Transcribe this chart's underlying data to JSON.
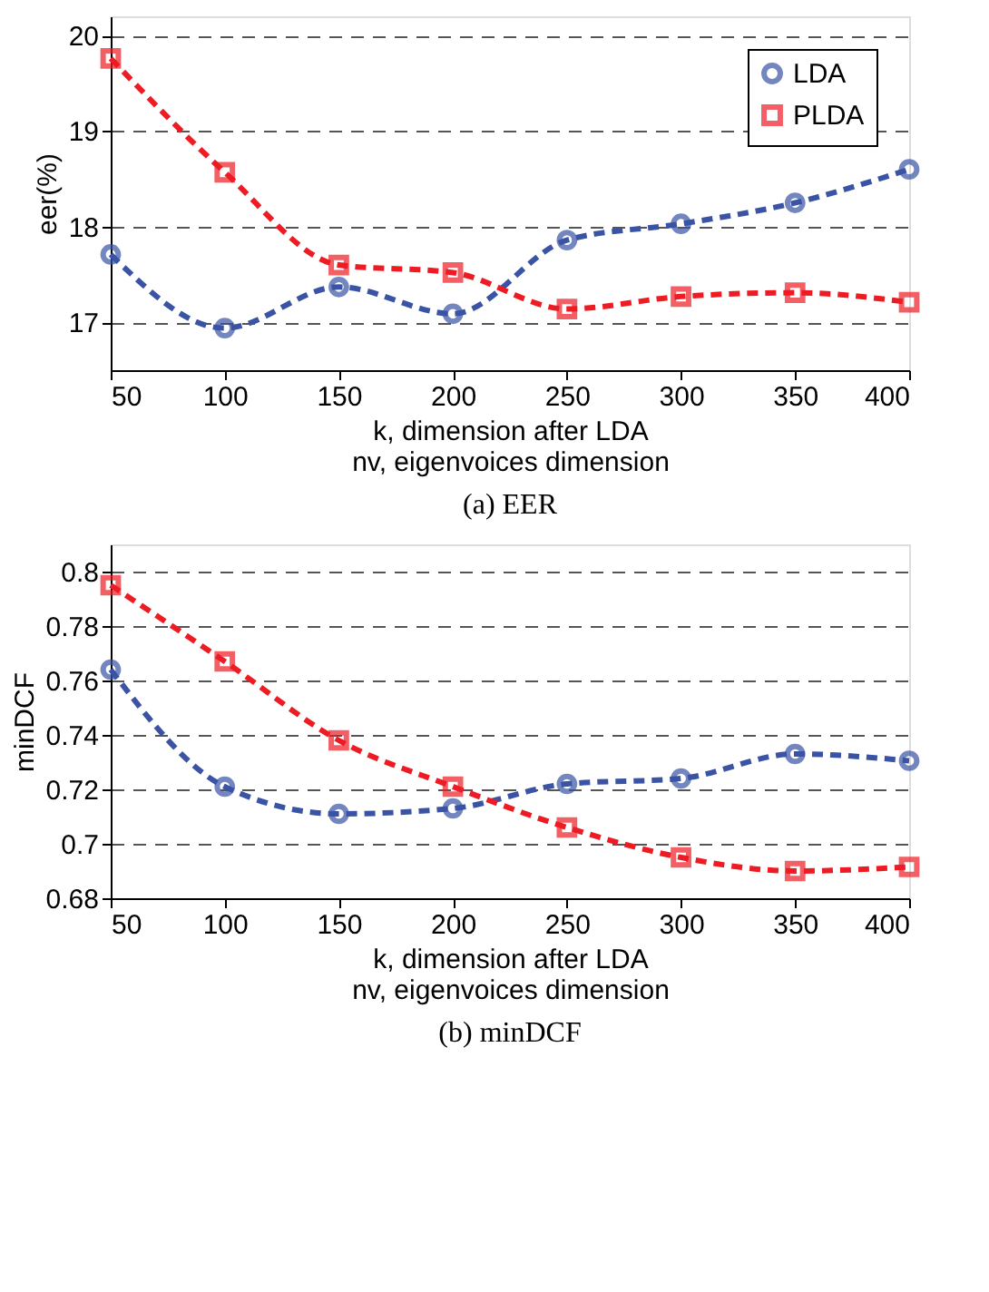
{
  "chart_data": [
    {
      "type": "line",
      "x": [
        50,
        100,
        150,
        200,
        250,
        300,
        350,
        400
      ],
      "xlim": [
        50,
        400
      ],
      "xticks": [
        50,
        100,
        150,
        200,
        250,
        300,
        350,
        400
      ],
      "ylim": [
        16.5,
        20.2
      ],
      "yticks": [
        17,
        18,
        19,
        20
      ],
      "xlabel": "k, dimension after LDA\nnv, eigenvoices dimension",
      "ylabel": "eer(%)",
      "annotations": [
        "(a) EER"
      ],
      "grid": "y",
      "legend": "top right",
      "line_style": "dashed",
      "series": [
        {
          "name": "LDA",
          "color": "#3a53a4",
          "marker": "circle",
          "values": [
            17.71,
            16.94,
            17.37,
            17.09,
            17.86,
            18.03,
            18.25,
            18.6
          ]
        },
        {
          "name": "PLDA",
          "color": "#ed1c24",
          "marker": "square",
          "values": [
            19.76,
            18.57,
            17.6,
            17.52,
            17.14,
            17.27,
            17.31,
            17.21
          ]
        }
      ]
    },
    {
      "type": "line",
      "x": [
        50,
        100,
        150,
        200,
        250,
        300,
        350,
        400
      ],
      "xlim": [
        50,
        400
      ],
      "xticks": [
        50,
        100,
        150,
        200,
        250,
        300,
        350,
        400
      ],
      "ylim": [
        0.68,
        0.81
      ],
      "yticks": [
        0.68,
        0.7,
        0.72,
        0.74,
        0.76,
        0.78,
        0.8
      ],
      "xlabel": "k, dimension after LDA\nnv, eigenvoices dimension",
      "ylabel": "minDCF",
      "annotations": [
        "(b) minDCF"
      ],
      "grid": "y",
      "legend": "top right",
      "line_style": "dashed",
      "series": [
        {
          "name": "LDA",
          "color": "#3a53a4",
          "marker": "circle",
          "values": [
            0.764,
            0.721,
            0.711,
            0.713,
            0.722,
            0.724,
            0.733,
            0.7305
          ]
        },
        {
          "name": "PLDA",
          "color": "#ed1c24",
          "marker": "square",
          "values": [
            0.795,
            0.767,
            0.738,
            0.721,
            0.706,
            0.695,
            0.69,
            0.6915
          ]
        }
      ]
    }
  ]
}
